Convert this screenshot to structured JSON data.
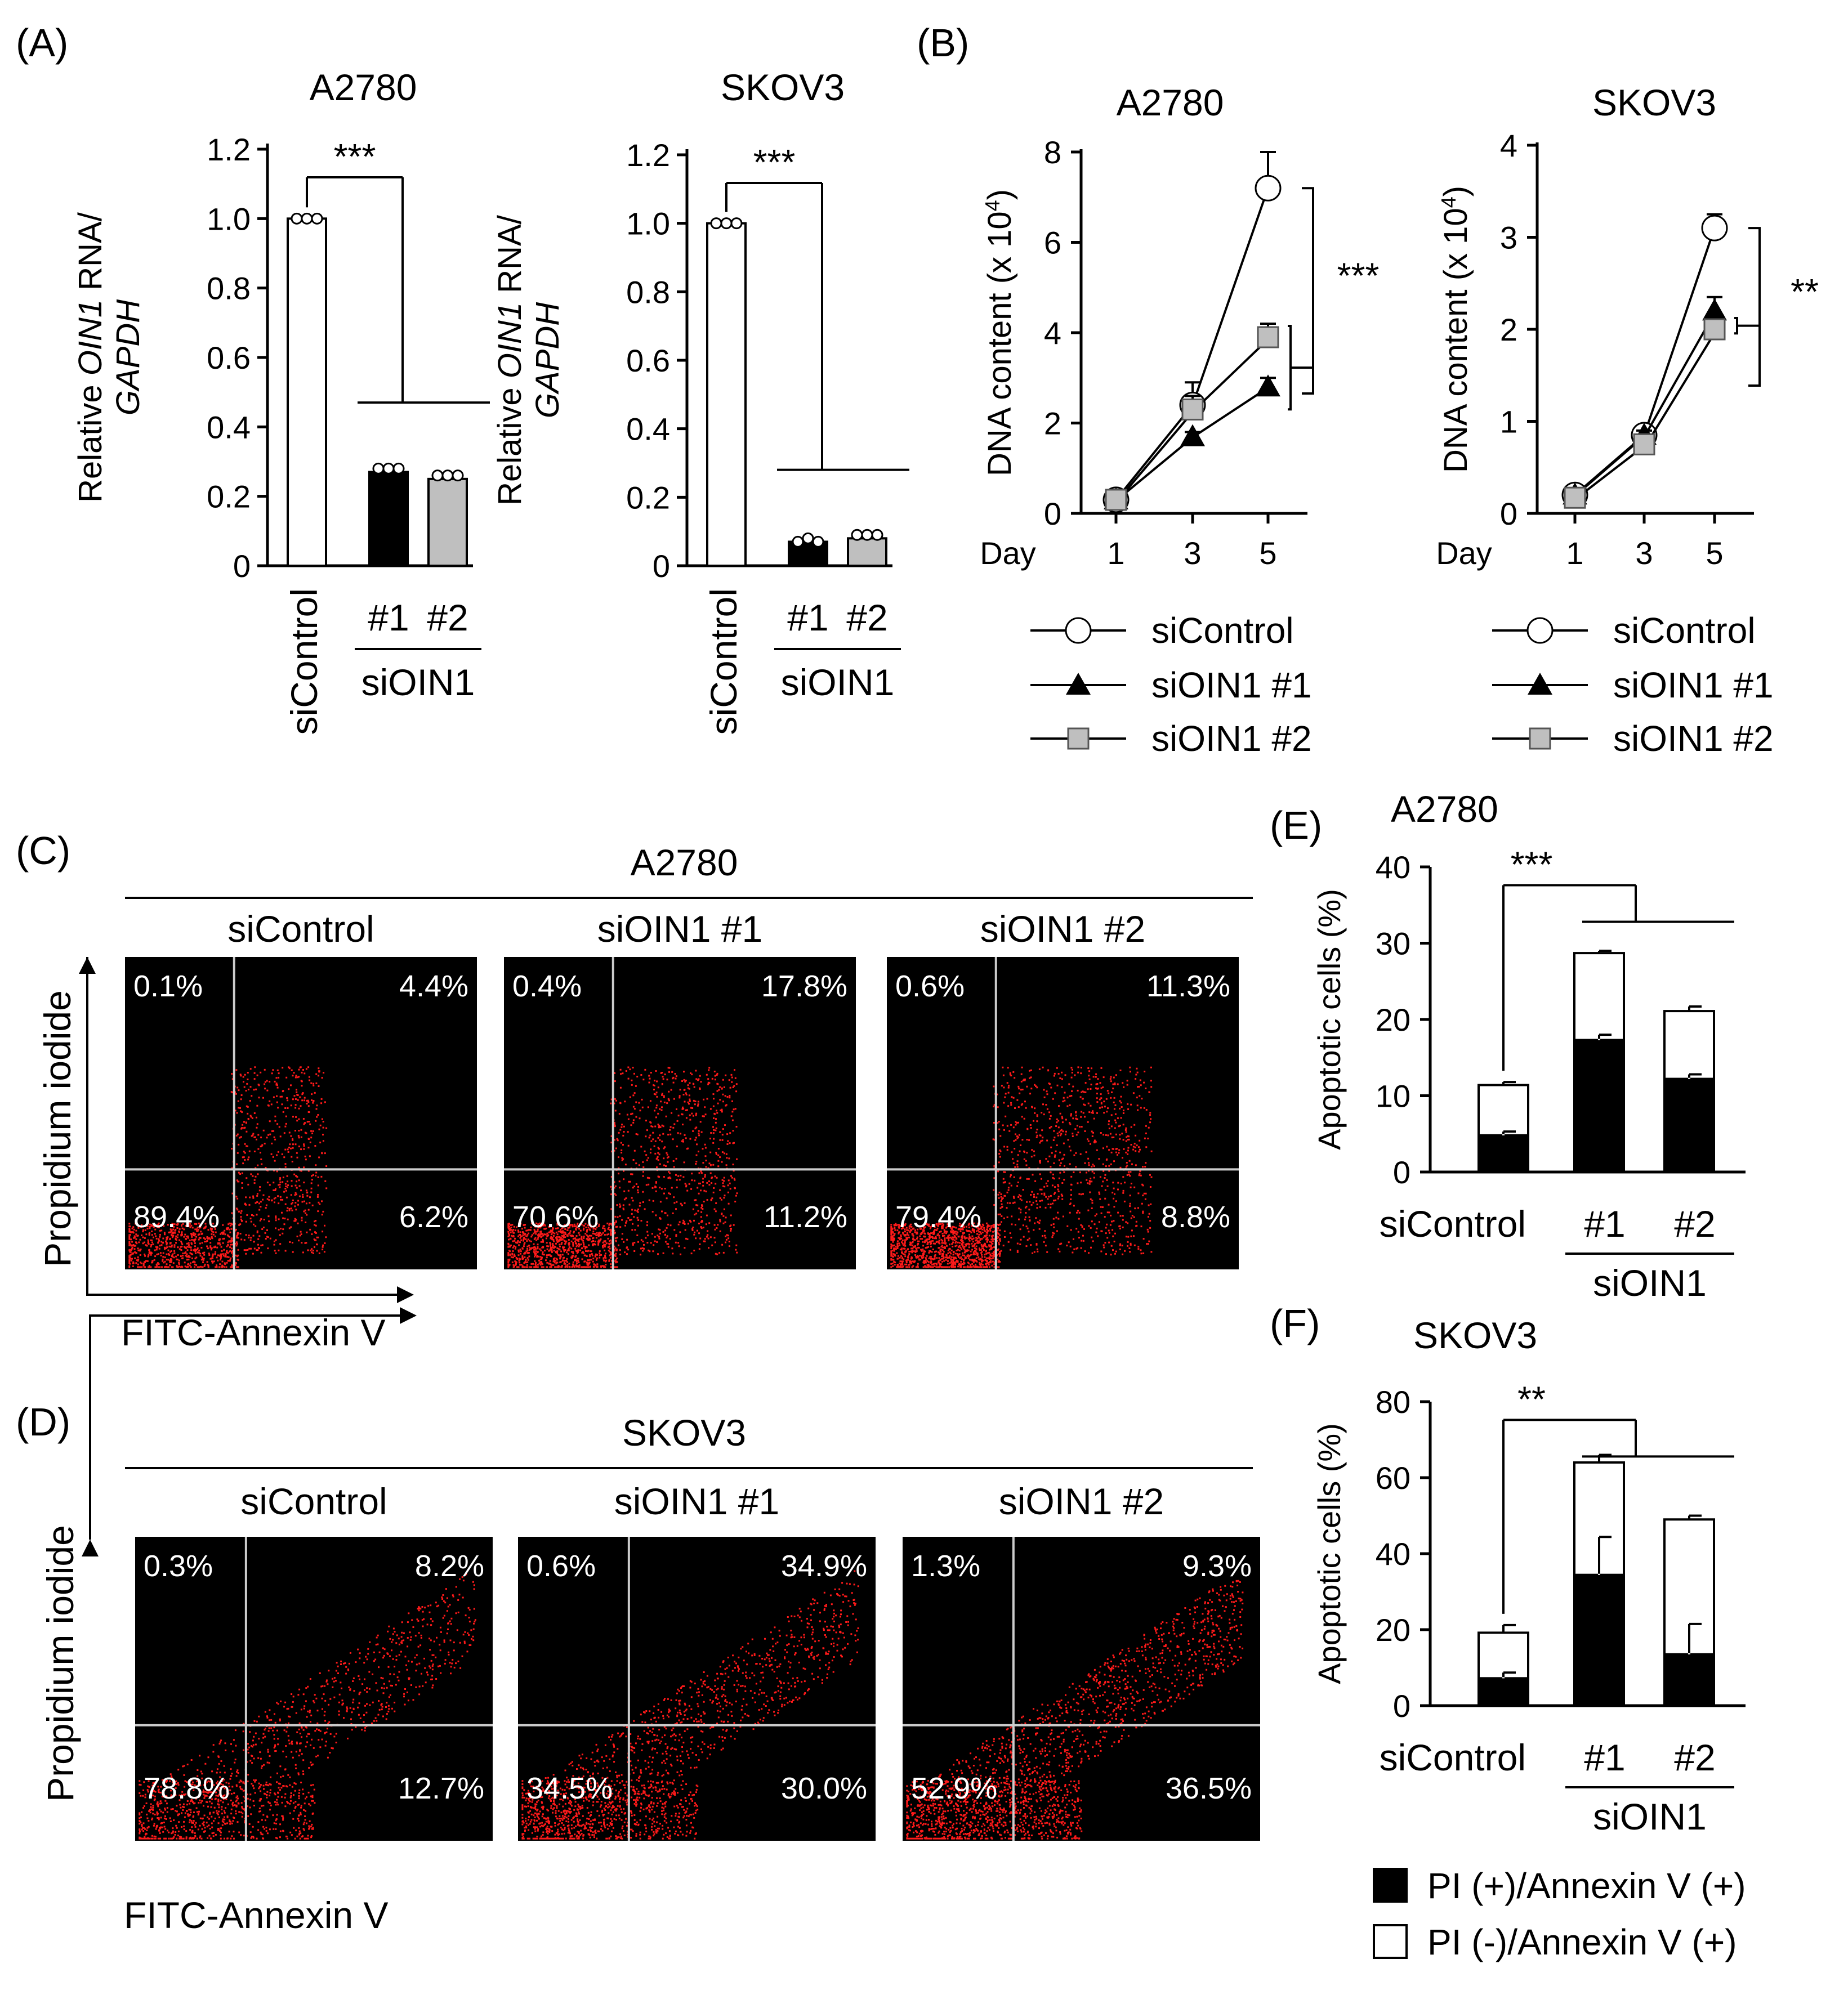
{
  "colors": {
    "siControl": "#ffffff",
    "siOIN1_1": "#000000",
    "siOIN1_2": "#bfbfbf",
    "dot": "#ff1a1a",
    "plot_bg": "#000000",
    "gate": "#cccccc"
  },
  "panels": {
    "A": {
      "label": "(A)"
    },
    "B": {
      "label": "(B)"
    },
    "C": {
      "label": "(C)"
    },
    "D": {
      "label": "(D)"
    },
    "E": {
      "label": "(E)"
    },
    "F": {
      "label": "(F)"
    }
  },
  "chart_data": [
    {
      "id": "A1",
      "type": "bar",
      "title": "A2780",
      "ylabel_parts": [
        "Relative ",
        "OIN1",
        " RNA/"
      ],
      "ylabel2": "GAPDH",
      "categories": [
        "siControl",
        "#1",
        "#2"
      ],
      "group_label": "siOIN1",
      "values": [
        1.0,
        0.27,
        0.25
      ],
      "replicates": [
        [
          1.0,
          1.0,
          1.0
        ],
        [
          0.28,
          0.28,
          0.28
        ],
        [
          0.26,
          0.26,
          0.26
        ]
      ],
      "ylim": [
        0,
        1.2
      ],
      "yticks": [
        "0",
        "0.2",
        "0.4",
        "0.6",
        "0.8",
        "1.0",
        "1.2"
      ],
      "significance": "***"
    },
    {
      "id": "A2",
      "type": "bar",
      "title": "SKOV3",
      "ylabel_parts": [
        "Relative ",
        "OIN1",
        " RNA/"
      ],
      "ylabel2": "GAPDH",
      "categories": [
        "siControl",
        "#1",
        "#2"
      ],
      "group_label": "siOIN1",
      "values": [
        1.0,
        0.07,
        0.08
      ],
      "replicates": [
        [
          1.0,
          1.0,
          1.0
        ],
        [
          0.07,
          0.08,
          0.07
        ],
        [
          0.09,
          0.09,
          0.09
        ]
      ],
      "ylim": [
        0,
        1.2
      ],
      "yticks": [
        "0",
        "0.2",
        "0.4",
        "0.6",
        "0.8",
        "1.0",
        "1.2"
      ],
      "significance": "***"
    },
    {
      "id": "B1",
      "type": "line",
      "title": "A2780",
      "ylabel": "DNA content (x 10",
      "ylabel_sup": "4",
      "ylabel_end": ")",
      "xlabel": "Day",
      "x": [
        1,
        3,
        5
      ],
      "xticks": [
        "1",
        "3",
        "5"
      ],
      "ylim": [
        0,
        8
      ],
      "yticks": [
        "0",
        "2",
        "4",
        "6",
        "8"
      ],
      "series": [
        {
          "name": "siControl",
          "values": [
            0.3,
            2.4,
            7.2
          ],
          "err": [
            0.1,
            0.5,
            0.8
          ]
        },
        {
          "name": "siOIN1 #1",
          "values": [
            0.3,
            1.7,
            2.8
          ],
          "err": [
            0.1,
            0.1,
            0.2
          ]
        },
        {
          "name": "siOIN1 #2",
          "values": [
            0.3,
            2.3,
            3.9
          ],
          "err": [
            0.1,
            0.3,
            0.3
          ]
        }
      ],
      "significance": "***"
    },
    {
      "id": "B2",
      "type": "line",
      "title": "SKOV3",
      "ylabel": "DNA content (x 10",
      "ylabel_sup": "4",
      "ylabel_end": ")",
      "xlabel": "Day",
      "x": [
        1,
        3,
        5
      ],
      "xticks": [
        "1",
        "3",
        "5"
      ],
      "ylim": [
        0,
        4
      ],
      "yticks": [
        "0",
        "1",
        "2",
        "3",
        "4"
      ],
      "series": [
        {
          "name": "siControl",
          "values": [
            0.2,
            0.85,
            3.1
          ],
          "err": [
            0.05,
            0.05,
            0.15
          ]
        },
        {
          "name": "siOIN1 #1",
          "values": [
            0.2,
            0.85,
            2.2
          ],
          "err": [
            0.05,
            0.05,
            0.15
          ]
        },
        {
          "name": "siOIN1 #2",
          "values": [
            0.17,
            0.75,
            2.0
          ],
          "err": [
            0.05,
            0.05,
            0.1
          ]
        }
      ],
      "significance": "**"
    },
    {
      "id": "C",
      "type": "scatter",
      "title": "A2780",
      "xlabel": "FITC-Annexin V",
      "ylabel": "Propidium iodide",
      "plots": [
        {
          "name": "siControl",
          "quadrants": {
            "ul": "0.1%",
            "ur": "4.4%",
            "ll": "89.4%",
            "lr": "6.2%"
          }
        },
        {
          "name": "siOIN1 #1",
          "quadrants": {
            "ul": "0.4%",
            "ur": "17.8%",
            "ll": "70.6%",
            "lr": "11.2%"
          }
        },
        {
          "name": "siOIN1 #2",
          "quadrants": {
            "ul": "0.6%",
            "ur": "11.3%",
            "ll": "79.4%",
            "lr": "8.8%"
          }
        }
      ]
    },
    {
      "id": "D",
      "type": "scatter",
      "title": "SKOV3",
      "xlabel": "FITC-Annexin V",
      "ylabel": "Propidium iodide",
      "plots": [
        {
          "name": "siControl",
          "quadrants": {
            "ul": "0.3%",
            "ur": "8.2%",
            "ll": "78.8%",
            "lr": "12.7%"
          }
        },
        {
          "name": "siOIN1 #1",
          "quadrants": {
            "ul": "0.6%",
            "ur": "34.9%",
            "ll": "34.5%",
            "lr": "30.0%"
          }
        },
        {
          "name": "siOIN1 #2",
          "quadrants": {
            "ul": "1.3%",
            "ur": "9.3%",
            "ll": "52.9%",
            "lr": "36.5%"
          }
        }
      ]
    },
    {
      "id": "E",
      "type": "bar",
      "title": "A2780",
      "stacked": true,
      "ylabel": "Apoptotic cells (%)",
      "categories": [
        "siControl",
        "#1",
        "#2"
      ],
      "group_label": "siOIN1",
      "series": [
        {
          "name": "PI (+)/Annexin V (+)",
          "values": [
            4.8,
            17.3,
            12.2
          ],
          "err": [
            0.5,
            0.7,
            0.6
          ]
        },
        {
          "name": "PI (-)/Annexin V (+)",
          "values": [
            6.6,
            11.4,
            8.9
          ],
          "err": [
            0.4,
            0.3,
            0.6
          ]
        }
      ],
      "ylim": [
        0,
        40
      ],
      "yticks": [
        "0",
        "10",
        "20",
        "30",
        "40"
      ],
      "significance": "***"
    },
    {
      "id": "F",
      "type": "bar",
      "title": "SKOV3",
      "stacked": true,
      "ylabel": "Apoptotic cells (%)",
      "categories": [
        "siControl",
        "#1",
        "#2"
      ],
      "group_label": "siOIN1",
      "series": [
        {
          "name": "PI (+)/Annexin V (+)",
          "values": [
            7.2,
            34.4,
            13.5
          ],
          "err": [
            1.5,
            10.0,
            8.0
          ]
        },
        {
          "name": "PI (-)/Annexin V (+)",
          "values": [
            12.0,
            29.6,
            35.5
          ],
          "err": [
            2.0,
            2.0,
            1.0
          ]
        }
      ],
      "ylim": [
        0,
        80
      ],
      "yticks": [
        "0",
        "20",
        "40",
        "60",
        "80"
      ],
      "significance": "**"
    }
  ],
  "legend": {
    "lines": [
      "siControl",
      "siOIN1 #1",
      "siOIN1 #2"
    ],
    "bars": [
      "PI (+)/Annexin V (+)",
      "PI (-)/Annexin V (+)"
    ]
  }
}
